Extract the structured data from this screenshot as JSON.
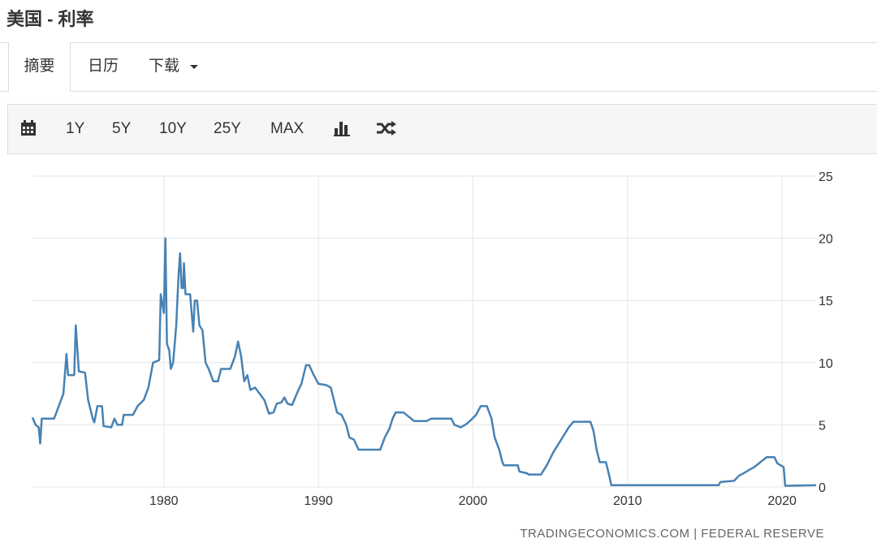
{
  "header": {
    "title": "美国 - 利率"
  },
  "tabs": [
    "摘要",
    "日历",
    "下载"
  ],
  "toolbar": [
    "1Y",
    "5Y",
    "10Y",
    "25Y",
    "MAX"
  ],
  "chart_data": {
    "type": "line",
    "x": [
      1971.5,
      1971.7,
      1971.9,
      1972.0,
      1972.1,
      1972.9,
      1973.2,
      1973.5,
      1973.7,
      1973.8,
      1974.2,
      1974.3,
      1974.5,
      1974.9,
      1975.1,
      1975.4,
      1975.5,
      1975.7,
      1976.0,
      1976.1,
      1976.6,
      1976.8,
      1977.0,
      1977.3,
      1977.4,
      1978.0,
      1978.3,
      1978.7,
      1979.0,
      1979.3,
      1979.7,
      1979.8,
      1980.0,
      1980.1,
      1980.2,
      1980.35,
      1980.45,
      1980.6,
      1980.8,
      1980.95,
      1981.05,
      1981.15,
      1981.25,
      1981.3,
      1981.4,
      1981.7,
      1981.9,
      1982.0,
      1982.15,
      1982.3,
      1982.5,
      1982.7,
      1982.9,
      1983.2,
      1983.5,
      1983.7,
      1984.0,
      1984.3,
      1984.6,
      1984.8,
      1985.0,
      1985.2,
      1985.4,
      1985.6,
      1985.9,
      1986.2,
      1986.5,
      1986.8,
      1987.1,
      1987.3,
      1987.6,
      1987.8,
      1988.0,
      1988.3,
      1988.6,
      1988.9,
      1989.2,
      1989.4,
      1989.7,
      1990.0,
      1990.5,
      1990.8,
      1991.0,
      1991.2,
      1991.5,
      1991.8,
      1992.0,
      1992.3,
      1992.6,
      1993.5,
      1994.0,
      1994.3,
      1994.6,
      1994.8,
      1995.0,
      1995.5,
      1995.8,
      1996.2,
      1997.0,
      1997.3,
      1998.6,
      1998.8,
      1999.2,
      1999.5,
      1999.8,
      2000.2,
      2000.5,
      2000.9,
      2001.2,
      2001.4,
      2001.7,
      2001.9,
      2002.0,
      2002.9,
      2003.0,
      2003.5,
      2003.6,
      2004.4,
      2004.8,
      2005.2,
      2005.7,
      2006.2,
      2006.5,
      2007.6,
      2007.8,
      2008.0,
      2008.2,
      2008.6,
      2008.8,
      2008.95,
      2015.9,
      2016.0,
      2016.9,
      2017.2,
      2017.5,
      2017.9,
      2018.2,
      2018.5,
      2018.8,
      2019.0,
      2019.5,
      2019.7,
      2020.1,
      2020.2,
      2022.2
    ],
    "series": [
      {
        "color": "#4682b4",
        "values": [
          5.6,
          5.0,
          4.8,
          3.5,
          5.5,
          5.5,
          6.5,
          7.5,
          10.7,
          9.0,
          9.0,
          13.0,
          9.3,
          9.2,
          7.0,
          5.5,
          5.2,
          6.5,
          6.5,
          4.9,
          4.8,
          5.5,
          5.0,
          5.0,
          5.8,
          5.8,
          6.5,
          7.0,
          8.0,
          10.0,
          10.2,
          15.5,
          14.0,
          20.0,
          11.5,
          11.0,
          9.5,
          10.0,
          13.0,
          17.0,
          18.8,
          16.0,
          16.0,
          18.0,
          15.5,
          15.5,
          12.5,
          15.0,
          15.0,
          13.0,
          12.6,
          10.0,
          9.5,
          8.5,
          8.5,
          9.5,
          9.5,
          9.5,
          10.5,
          11.7,
          10.5,
          8.5,
          9.0,
          7.8,
          8.0,
          7.5,
          7.0,
          5.9,
          6.0,
          6.7,
          6.8,
          7.2,
          6.7,
          6.6,
          7.5,
          8.3,
          9.8,
          9.8,
          9.0,
          8.3,
          8.2,
          8.0,
          7.0,
          6.0,
          5.8,
          5.0,
          4.0,
          3.8,
          3.0,
          3.0,
          3.0,
          4.0,
          4.7,
          5.5,
          6.0,
          6.0,
          5.7,
          5.3,
          5.3,
          5.5,
          5.5,
          5.0,
          4.8,
          5.0,
          5.3,
          5.8,
          6.5,
          6.5,
          5.5,
          4.0,
          3.0,
          2.0,
          1.75,
          1.75,
          1.25,
          1.1,
          1.0,
          1.0,
          1.8,
          2.8,
          3.8,
          4.8,
          5.25,
          5.25,
          4.5,
          3.0,
          2.0,
          2.0,
          1.0,
          0.15,
          0.15,
          0.4,
          0.5,
          0.9,
          1.1,
          1.4,
          1.6,
          1.9,
          2.2,
          2.4,
          2.4,
          1.9,
          1.6,
          0.1,
          0.15
        ]
      }
    ],
    "xlim": [
      1971.5,
      2022.2
    ],
    "xticks": [
      1980,
      1990,
      2000,
      2010,
      2020
    ],
    "ylim": [
      0,
      25
    ],
    "yticks": [
      0,
      5,
      10,
      15,
      20,
      25
    ],
    "grid": true,
    "source": "TRADINGECONOMICS.COM | FEDERAL RESERVE"
  }
}
